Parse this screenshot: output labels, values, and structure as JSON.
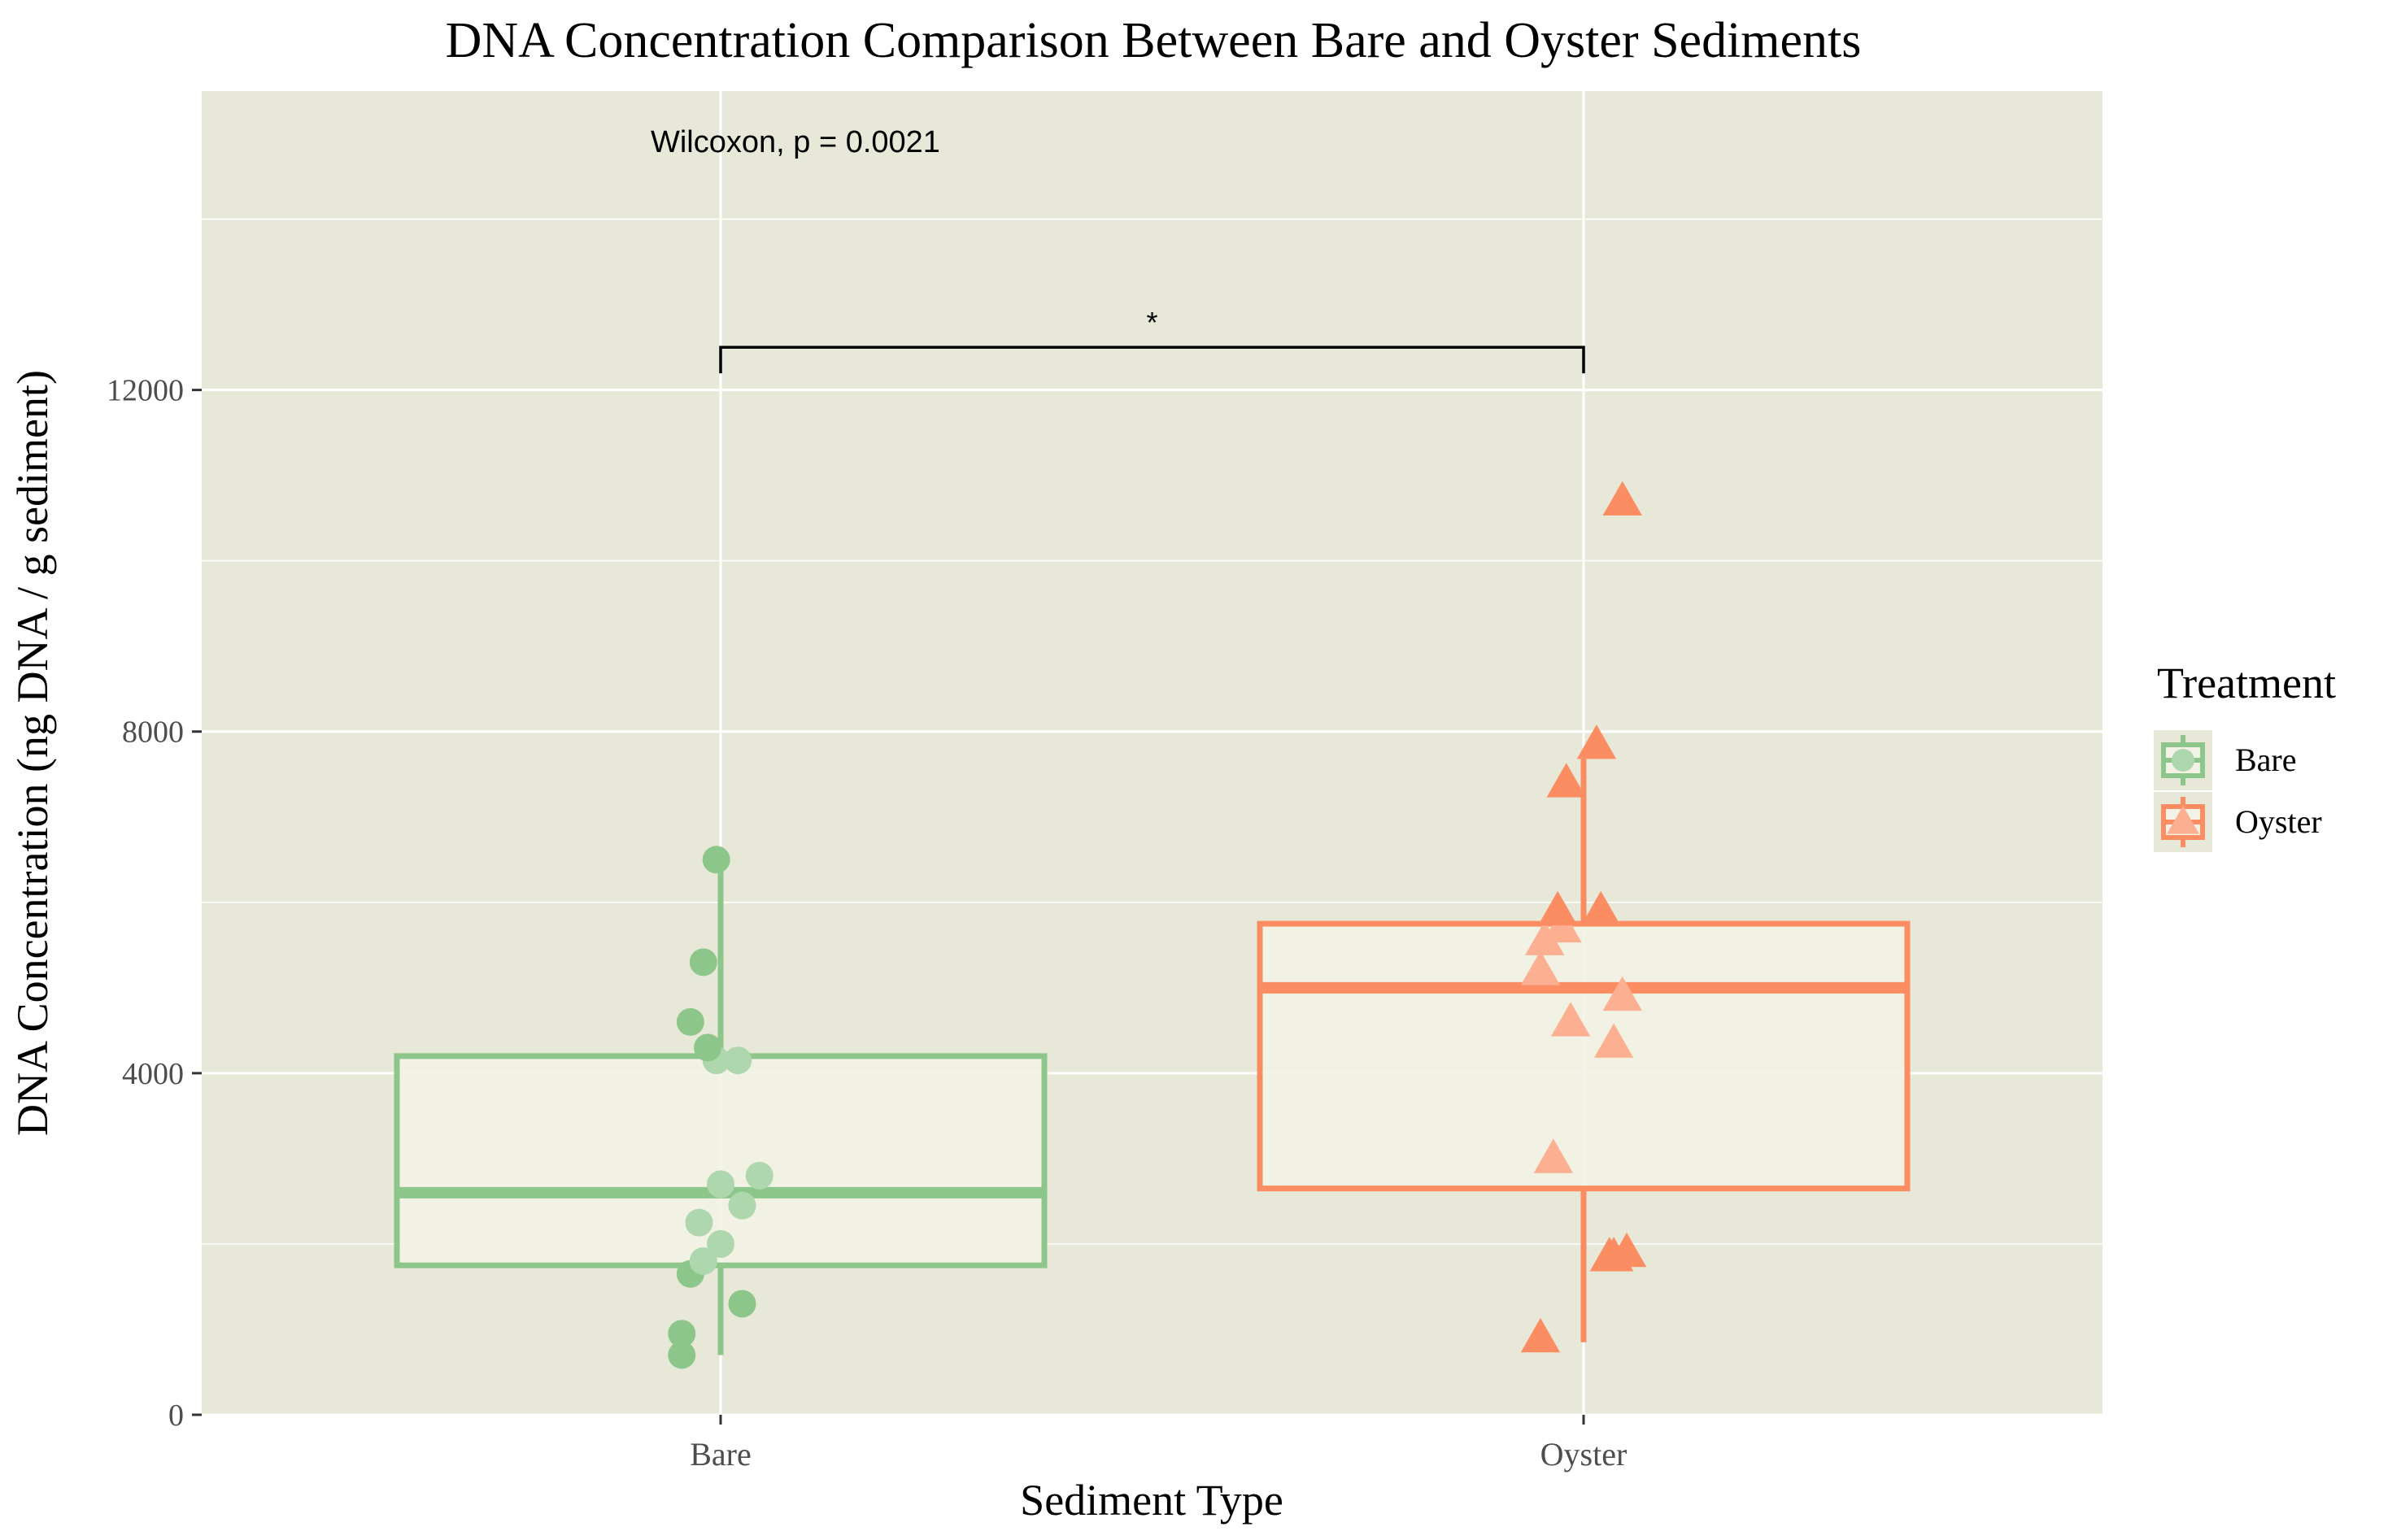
{
  "chart_data": {
    "type": "box",
    "title": "DNA Concentration Comparison Between Bare and Oyster Sediments",
    "xlabel": "Sediment Type",
    "ylabel": "DNA Concentration (ng DNA / g sediment)",
    "ylim": [
      0,
      15500
    ],
    "y_ticks": [
      0,
      4000,
      8000,
      12000
    ],
    "y_tick_labels": [
      "0",
      "4000",
      "8000",
      "12000"
    ],
    "grid": true,
    "legend_position": "right",
    "legend_title": "Treatment",
    "annotation": "Wilcoxon, p = 0.0021",
    "significance": {
      "label": "*",
      "y": 12500,
      "from": "Bare",
      "to": "Oyster"
    },
    "colors": {
      "Bare": "#8CC68A",
      "Oyster": "#FC8D62",
      "panel": "#E8E8D8",
      "grid": "#FFFFFF"
    },
    "categories": [
      "Bare",
      "Oyster"
    ],
    "series": [
      {
        "name": "Bare",
        "marker": "circle",
        "box": {
          "whisker_low": 700,
          "q1": 1750,
          "median": 2600,
          "q3": 4200,
          "whisker_high": 6500
        },
        "points": [
          {
            "x": -0.09,
            "y": 700
          },
          {
            "x": -0.09,
            "y": 950
          },
          {
            "x": 0.05,
            "y": 1300
          },
          {
            "x": -0.07,
            "y": 1650
          },
          {
            "x": -0.04,
            "y": 1800
          },
          {
            "x": 0.0,
            "y": 2000
          },
          {
            "x": -0.05,
            "y": 2250
          },
          {
            "x": 0.05,
            "y": 2450
          },
          {
            "x": 0.0,
            "y": 2700
          },
          {
            "x": 0.09,
            "y": 2800
          },
          {
            "x": -0.01,
            "y": 4150
          },
          {
            "x": 0.04,
            "y": 4150
          },
          {
            "x": -0.03,
            "y": 4300
          },
          {
            "x": -0.07,
            "y": 4600
          },
          {
            "x": -0.04,
            "y": 5300
          },
          {
            "x": -0.01,
            "y": 6500
          }
        ]
      },
      {
        "name": "Oyster",
        "marker": "triangle",
        "box": {
          "whisker_low": 850,
          "q1": 2650,
          "median": 5000,
          "q3": 5750,
          "whisker_high": 7700
        },
        "points": [
          {
            "x": -0.1,
            "y": 900
          },
          {
            "x": 0.06,
            "y": 1850
          },
          {
            "x": 0.07,
            "y": 1850
          },
          {
            "x": 0.1,
            "y": 1900
          },
          {
            "x": -0.07,
            "y": 3000
          },
          {
            "x": 0.07,
            "y": 4350
          },
          {
            "x": -0.03,
            "y": 4600
          },
          {
            "x": 0.09,
            "y": 4900
          },
          {
            "x": -0.1,
            "y": 5200
          },
          {
            "x": -0.09,
            "y": 5550
          },
          {
            "x": -0.05,
            "y": 5700
          },
          {
            "x": -0.06,
            "y": 5900
          },
          {
            "x": 0.04,
            "y": 5900
          },
          {
            "x": -0.04,
            "y": 7400
          },
          {
            "x": 0.03,
            "y": 7850
          },
          {
            "x": 0.09,
            "y": 10700
          }
        ]
      }
    ]
  }
}
